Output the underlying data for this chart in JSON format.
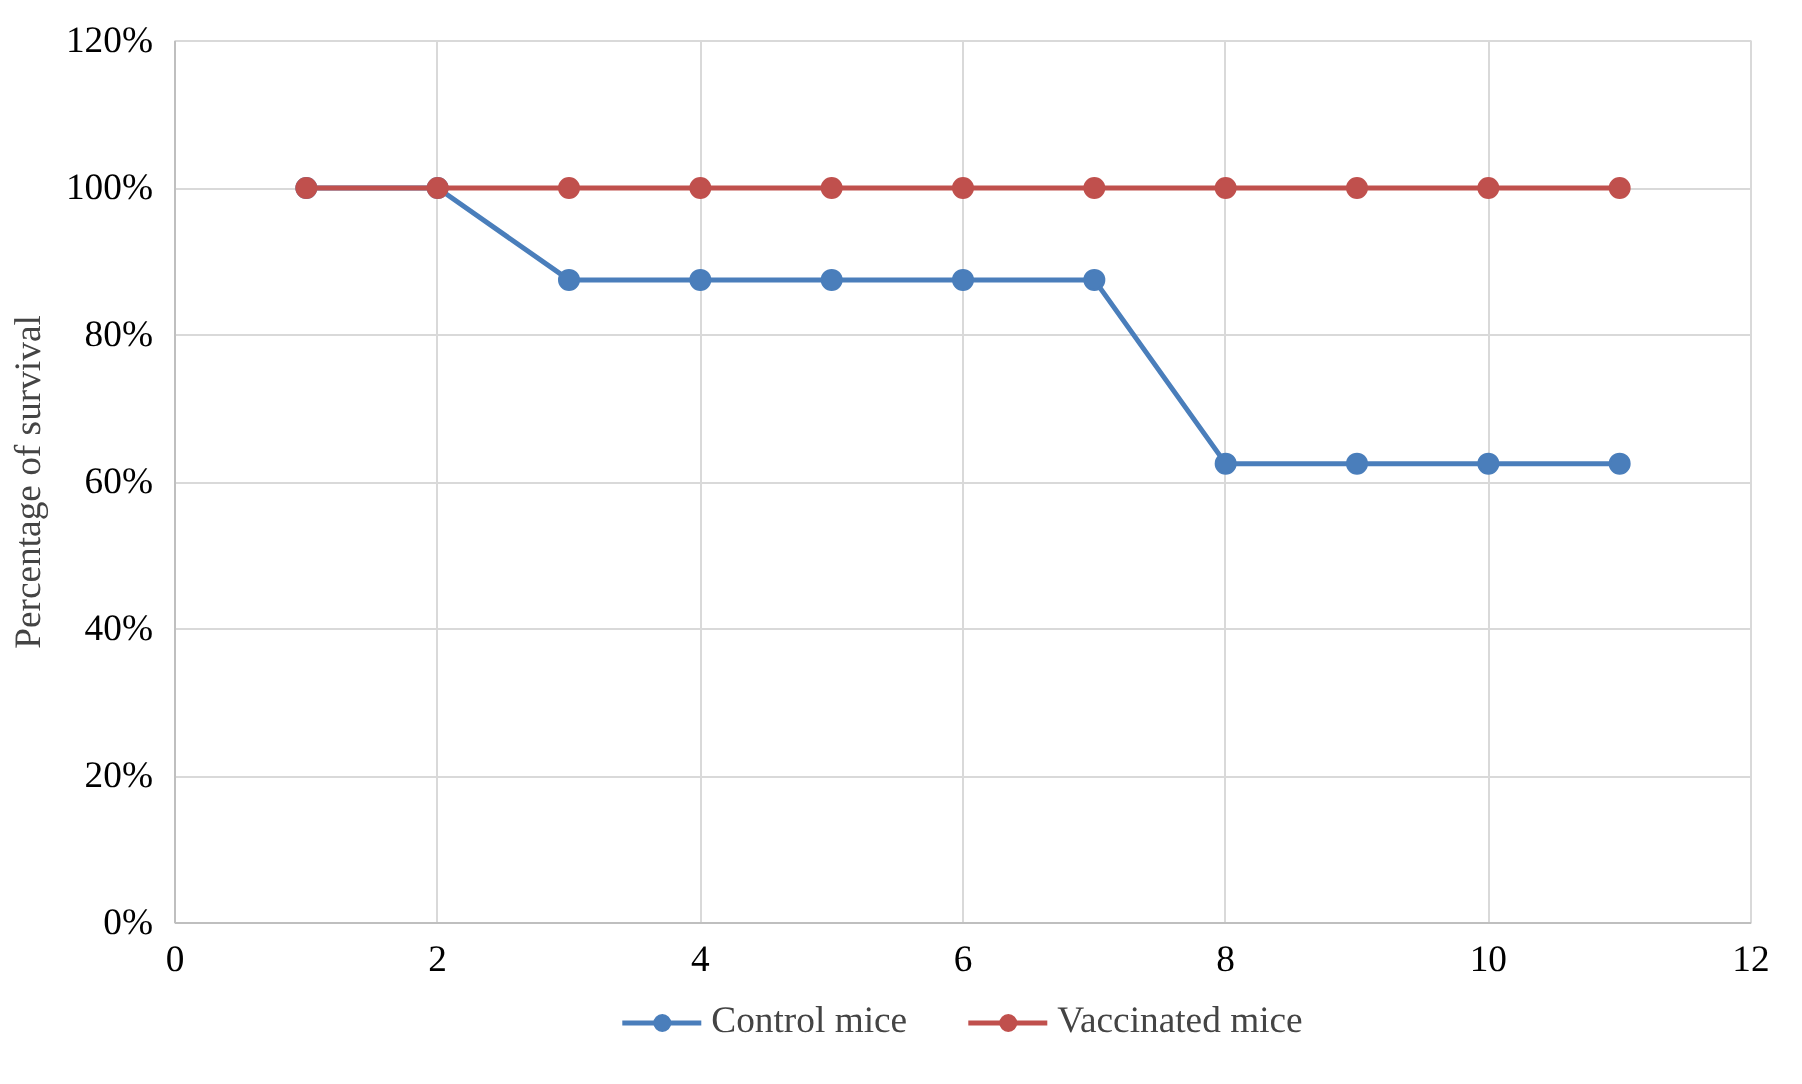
{
  "chart_data": {
    "type": "line",
    "ylabel": "Percentage of survival",
    "x": [
      1,
      2,
      3,
      4,
      5,
      6,
      7,
      8,
      9,
      10,
      11
    ],
    "series": [
      {
        "name": "Control mice",
        "color": "#4a7ebb",
        "values": [
          100,
          100,
          87.5,
          87.5,
          87.5,
          87.5,
          87.5,
          62.5,
          62.5,
          62.5,
          62.5
        ]
      },
      {
        "name": "Vaccinated mice",
        "color": "#c0504d",
        "values": [
          100,
          100,
          100,
          100,
          100,
          100,
          100,
          100,
          100,
          100,
          100
        ]
      }
    ],
    "xlim": [
      0,
      12
    ],
    "xticks": [
      0,
      2,
      4,
      6,
      8,
      10,
      12
    ],
    "ylim": [
      0,
      120
    ],
    "yticks": [
      {
        "value": 0,
        "label": "0%"
      },
      {
        "value": 20,
        "label": "20%"
      },
      {
        "value": 40,
        "label": "40%"
      },
      {
        "value": 60,
        "label": "60%"
      },
      {
        "value": 80,
        "label": "80%"
      },
      {
        "value": 100,
        "label": "100%"
      },
      {
        "value": 120,
        "label": "120%"
      }
    ],
    "grid": true,
    "legend": "bottom",
    "marker": "circle",
    "line_style": "solid"
  }
}
